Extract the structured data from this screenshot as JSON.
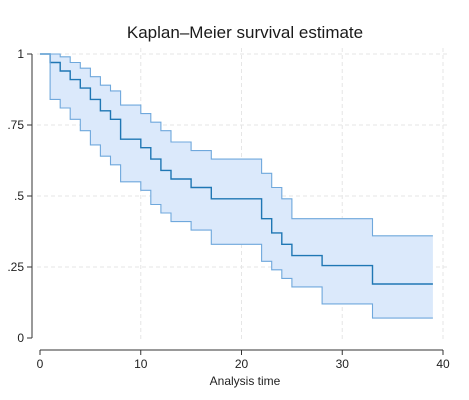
{
  "chart_data": {
    "type": "line",
    "title": "Kaplan–Meier survival estimate",
    "xlabel": "Analysis time",
    "ylabel": "",
    "xlim": [
      0,
      40
    ],
    "ylim": [
      0,
      1
    ],
    "x_ticks": [
      0,
      10,
      20,
      30,
      40
    ],
    "x_tick_labels": [
      "0",
      "10",
      "20",
      "30",
      "40"
    ],
    "y_ticks": [
      0,
      0.25,
      0.5,
      0.75,
      1
    ],
    "y_tick_labels": [
      "0",
      ".25",
      ".5",
      ".75",
      "1"
    ],
    "grid": true,
    "step": true,
    "series": [
      {
        "kind": "survival",
        "x": [
          0,
          1,
          2,
          3,
          4,
          5,
          6,
          7,
          8,
          10,
          11,
          12,
          13,
          15,
          17,
          22,
          23,
          24,
          25,
          28,
          33,
          39
        ],
        "y": [
          1.0,
          0.97,
          0.94,
          0.91,
          0.88,
          0.84,
          0.8,
          0.77,
          0.7,
          0.67,
          0.63,
          0.59,
          0.56,
          0.53,
          0.49,
          0.42,
          0.37,
          0.33,
          0.29,
          0.255,
          0.19,
          0.19
        ],
        "color": "#1f77b4"
      },
      {
        "kind": "ci_upper",
        "x": [
          0,
          1,
          2,
          3,
          4,
          5,
          6,
          7,
          8,
          10,
          11,
          12,
          13,
          15,
          17,
          22,
          23,
          24,
          25,
          28,
          33,
          39
        ],
        "y": [
          1.0,
          1.0,
          0.99,
          0.97,
          0.95,
          0.92,
          0.89,
          0.87,
          0.82,
          0.79,
          0.76,
          0.73,
          0.69,
          0.66,
          0.63,
          0.58,
          0.53,
          0.49,
          0.42,
          0.42,
          0.36,
          0.36
        ],
        "color": "#6fa8dc"
      },
      {
        "kind": "ci_lower",
        "x": [
          0,
          1,
          2,
          3,
          4,
          5,
          6,
          7,
          8,
          10,
          11,
          12,
          13,
          15,
          17,
          22,
          23,
          24,
          25,
          28,
          33,
          39
        ],
        "y": [
          1.0,
          0.84,
          0.81,
          0.77,
          0.73,
          0.68,
          0.64,
          0.61,
          0.55,
          0.52,
          0.47,
          0.44,
          0.41,
          0.38,
          0.33,
          0.27,
          0.24,
          0.21,
          0.18,
          0.12,
          0.07,
          0.07
        ],
        "color": "#6fa8dc"
      }
    ],
    "band_fill": "#dbe9fb",
    "grid_color": "#e6e6e6",
    "axis_color": "#333333"
  }
}
